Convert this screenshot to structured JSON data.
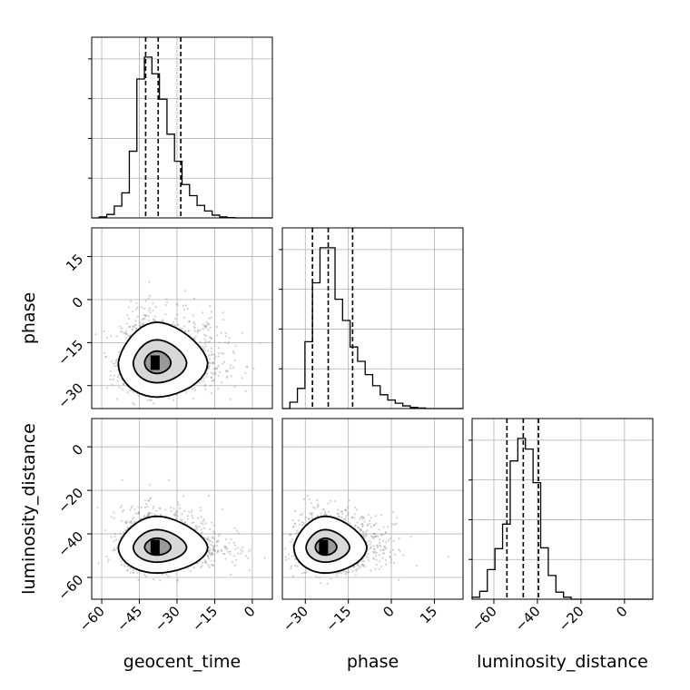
{
  "chart_data": {
    "type": "corner",
    "parameters": [
      "geocent_time",
      "phase",
      "luminosity_distance"
    ],
    "axis_labels": {
      "x": [
        "geocent_time",
        "phase",
        "luminosity_distance"
      ],
      "y": [
        "phase",
        "luminosity_distance"
      ]
    },
    "ranges": {
      "geocent_time": [
        -64,
        8
      ],
      "phase": [
        -38,
        25
      ],
      "luminosity_distance": [
        -70,
        13
      ]
    },
    "ticks": {
      "geocent_time": [
        -60,
        -45,
        -30,
        -15,
        0
      ],
      "phase": [
        -30,
        -15,
        0,
        15
      ],
      "luminosity_distance": [
        -60,
        -40,
        -20,
        0
      ]
    },
    "grid": true,
    "histograms": [
      {
        "parameter": "geocent_time",
        "bin_edges": [
          -64,
          -61,
          -58,
          -55,
          -52,
          -49,
          -46,
          -43,
          -40,
          -37,
          -34,
          -31,
          -28,
          -25,
          -22,
          -19,
          -16,
          -13,
          -10,
          -7,
          -4,
          -1,
          2,
          5,
          8
        ],
        "heights": [
          0,
          0.3,
          1.0,
          3.4,
          7.2,
          19.2,
          40.0,
          46.3,
          41.5,
          34.2,
          24.1,
          16.3,
          9.6,
          6.4,
          3.6,
          2.0,
          0.8,
          0.3,
          0.1,
          0,
          0,
          0,
          0,
          0
        ],
        "quantiles": [
          -42.5,
          -37.5,
          -28.5
        ]
      },
      {
        "parameter": "phase",
        "bin_edges": [
          -38,
          -35.375,
          -32.75,
          -30.125,
          -27.5,
          -24.875,
          -22.25,
          -19.625,
          -16.999,
          -14.375,
          -11.75,
          -9.125,
          -6.5,
          -3.875,
          -1.25,
          1.375,
          4,
          6.625,
          9.25,
          11.875,
          14.5,
          17.125,
          19.75,
          22.375,
          25
        ],
        "heights": [
          0,
          1.2,
          3.8,
          12.6,
          23.7,
          30.3,
          30.3,
          20.6,
          16.6,
          11.6,
          8.9,
          6.4,
          4.3,
          2.6,
          1.6,
          1.0,
          0.5,
          0.2,
          0.1,
          0,
          0,
          0,
          0,
          0
        ],
        "quantiles": [
          -27.5,
          -22.0,
          -13.5
        ]
      },
      {
        "parameter": "luminosity_distance",
        "bin_edges": [
          -70,
          -66.5,
          -63,
          -59.5,
          -56,
          -52.5,
          -49,
          -45.5,
          -42,
          -38.5,
          -35,
          -31.5,
          -28,
          -24.5,
          -21,
          -17.5,
          -14,
          -10.5,
          -7,
          -3.5,
          0,
          3.5,
          7,
          10.5,
          13
        ],
        "heights": [
          0.5,
          2.0,
          7.5,
          12.8,
          19.0,
          35.0,
          40.7,
          38.0,
          29.5,
          13.0,
          6.0,
          1.8,
          0.5,
          0,
          0,
          0,
          0,
          0,
          0,
          0,
          0,
          0,
          0,
          0
        ],
        "quantiles": [
          -54,
          -46.5,
          -39.5
        ]
      }
    ],
    "joint_2d": [
      {
        "x": "geocent_time",
        "y": "phase",
        "peak": [
          -38,
          -22
        ],
        "spread": [
          7,
          5
        ],
        "tail": [
          12,
          4
        ],
        "levels": [
          0.39,
          0.86,
          1.0
        ]
      },
      {
        "x": "geocent_time",
        "y": "luminosity_distance",
        "peak": [
          -38,
          -46
        ],
        "spread": [
          7,
          5
        ],
        "tail": [
          12,
          4
        ],
        "levels": [
          0.39,
          0.86,
          1.0
        ]
      },
      {
        "x": "phase",
        "y": "luminosity_distance",
        "peak": [
          -23,
          -46
        ],
        "spread": [
          5,
          5
        ],
        "tail": [
          10,
          3
        ],
        "levels": [
          0.39,
          0.86,
          1.0
        ]
      }
    ]
  }
}
